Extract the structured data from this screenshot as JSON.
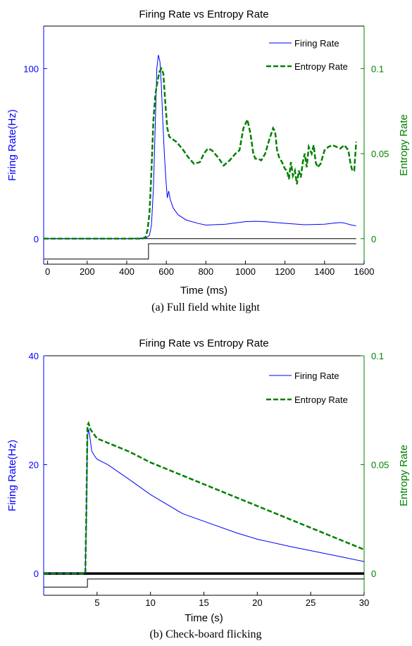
{
  "chart_data": [
    {
      "type": "line",
      "title": "Firing Rate vs Entropy Rate",
      "xlabel": "Time (ms)",
      "ylabel_left": "Firing Rate(Hz)",
      "ylabel_right": "Entropy Rate",
      "caption": "(a) Full field white light",
      "xlim": [
        -20,
        1600
      ],
      "ylim_left": [
        -15,
        125
      ],
      "ylim_right": [
        -0.015,
        0.125
      ],
      "x_ticks": [
        0,
        200,
        400,
        600,
        800,
        1000,
        1200,
        1400,
        1600
      ],
      "y_left_ticks": [
        0,
        100
      ],
      "y_right_ticks": [
        0,
        0.05,
        0.1
      ],
      "legend": "top-right",
      "colors": {
        "firing": "#0000ff",
        "entropy": "#008000",
        "stimulus": "#000000"
      },
      "series": [
        {
          "name": "Firing Rate",
          "axis": "left",
          "style": "solid",
          "x": [
            -20,
            400,
            500,
            515,
            525,
            535,
            545,
            552,
            560,
            568,
            575,
            582,
            590,
            598,
            605,
            612,
            620,
            635,
            660,
            700,
            760,
            800,
            900,
            1000,
            1050,
            1100,
            1200,
            1300,
            1400,
            1450,
            1480,
            1500,
            1530,
            1560
          ],
          "values": [
            0,
            0,
            0.5,
            2,
            8,
            30,
            70,
            100,
            108,
            104,
            90,
            70,
            50,
            35,
            24,
            28,
            23,
            18,
            14,
            11,
            9,
            8,
            8.5,
            10,
            10.2,
            10,
            9,
            8.2,
            8.5,
            9.2,
            9.5,
            9.2,
            8.2,
            7.5
          ]
        },
        {
          "name": "Entropy Rate",
          "axis": "right",
          "style": "dashed",
          "x": [
            -20,
            400,
            480,
            495,
            505,
            515,
            525,
            535,
            545,
            555,
            565,
            575,
            585,
            595,
            605,
            615,
            625,
            650,
            680,
            710,
            740,
            770,
            790,
            810,
            830,
            860,
            890,
            920,
            950,
            970,
            990,
            1010,
            1025,
            1040,
            1050,
            1065,
            1080,
            1100,
            1120,
            1140,
            1150,
            1160,
            1170,
            1185,
            1200,
            1210,
            1220,
            1230,
            1240,
            1250,
            1260,
            1270,
            1280,
            1290,
            1300,
            1310,
            1320,
            1335,
            1345,
            1355,
            1365,
            1380,
            1400,
            1420,
            1440,
            1460,
            1480,
            1500,
            1520,
            1530,
            1540,
            1550,
            1560
          ],
          "values": [
            0,
            0,
            0,
            0.001,
            0.005,
            0.015,
            0.04,
            0.07,
            0.085,
            0.092,
            0.098,
            0.1,
            0.097,
            0.08,
            0.065,
            0.06,
            0.059,
            0.057,
            0.053,
            0.048,
            0.044,
            0.045,
            0.05,
            0.053,
            0.052,
            0.048,
            0.043,
            0.046,
            0.05,
            0.052,
            0.065,
            0.07,
            0.062,
            0.05,
            0.047,
            0.047,
            0.046,
            0.05,
            0.058,
            0.065,
            0.063,
            0.052,
            0.048,
            0.045,
            0.041,
            0.04,
            0.035,
            0.045,
            0.037,
            0.04,
            0.032,
            0.04,
            0.036,
            0.045,
            0.05,
            0.042,
            0.054,
            0.05,
            0.055,
            0.045,
            0.042,
            0.044,
            0.052,
            0.054,
            0.055,
            0.054,
            0.053,
            0.055,
            0.052,
            0.045,
            0.04,
            0.04,
            0.057
          ]
        },
        {
          "name": "",
          "axis": "left",
          "style": "step",
          "x": [
            -20,
            510,
            510,
            1560
          ],
          "values": [
            -12,
            -12,
            -3,
            -3
          ]
        }
      ],
      "baseline_line": {
        "axis": "left",
        "value": 0,
        "x": [
          0,
          1560
        ]
      }
    },
    {
      "type": "line",
      "title": "Firing Rate vs Entropy Rate",
      "xlabel": "Time (s)",
      "ylabel_left": "Firing Rate(Hz)",
      "ylabel_right": "Entropy Rate",
      "caption": "(b) Check-board flicking",
      "xlim": [
        0,
        30
      ],
      "ylim_left": [
        -4,
        40
      ],
      "ylim_right": [
        -0.01,
        0.1
      ],
      "x_ticks": [
        5,
        10,
        15,
        20,
        25,
        30
      ],
      "y_left_ticks": [
        0,
        20,
        40
      ],
      "y_right_ticks": [
        0,
        0.05,
        0.1
      ],
      "legend": "top-right",
      "colors": {
        "firing": "#0000ff",
        "entropy": "#008000",
        "stimulus": "#000000"
      },
      "series": [
        {
          "name": "Firing Rate",
          "axis": "left",
          "style": "solid",
          "x": [
            0,
            3.7,
            3.9,
            4.0,
            4.1,
            4.2,
            4.3,
            4.5,
            4.8,
            5,
            6,
            8,
            10,
            13,
            15,
            18,
            20,
            23,
            25,
            28,
            30
          ],
          "values": [
            0,
            0,
            0,
            10,
            25,
            26.5,
            25.5,
            22.5,
            21.5,
            21,
            20,
            17.3,
            14.5,
            11,
            9.6,
            7.5,
            6.3,
            5,
            4.2,
            3,
            2.2
          ]
        },
        {
          "name": "Entropy Rate",
          "axis": "right",
          "style": "dashed",
          "x": [
            0,
            3.7,
            3.9,
            4.0,
            4.1,
            4.2,
            4.4,
            4.7,
            5,
            6,
            8,
            10,
            12,
            15,
            18,
            20,
            22,
            25,
            28,
            30
          ],
          "values": [
            0,
            0,
            0,
            0.03,
            0.068,
            0.069,
            0.066,
            0.064,
            0.062,
            0.06,
            0.056,
            0.051,
            0.047,
            0.041,
            0.035,
            0.031,
            0.027,
            0.021,
            0.015,
            0.011
          ]
        },
        {
          "name": "",
          "axis": "left",
          "style": "step",
          "x": [
            0,
            4.1,
            4.1,
            30
          ],
          "values": [
            -2.5,
            -2.5,
            -1,
            -1
          ]
        }
      ],
      "baseline_line": {
        "axis": "left",
        "value": 0,
        "x": [
          0,
          30
        ]
      }
    }
  ]
}
